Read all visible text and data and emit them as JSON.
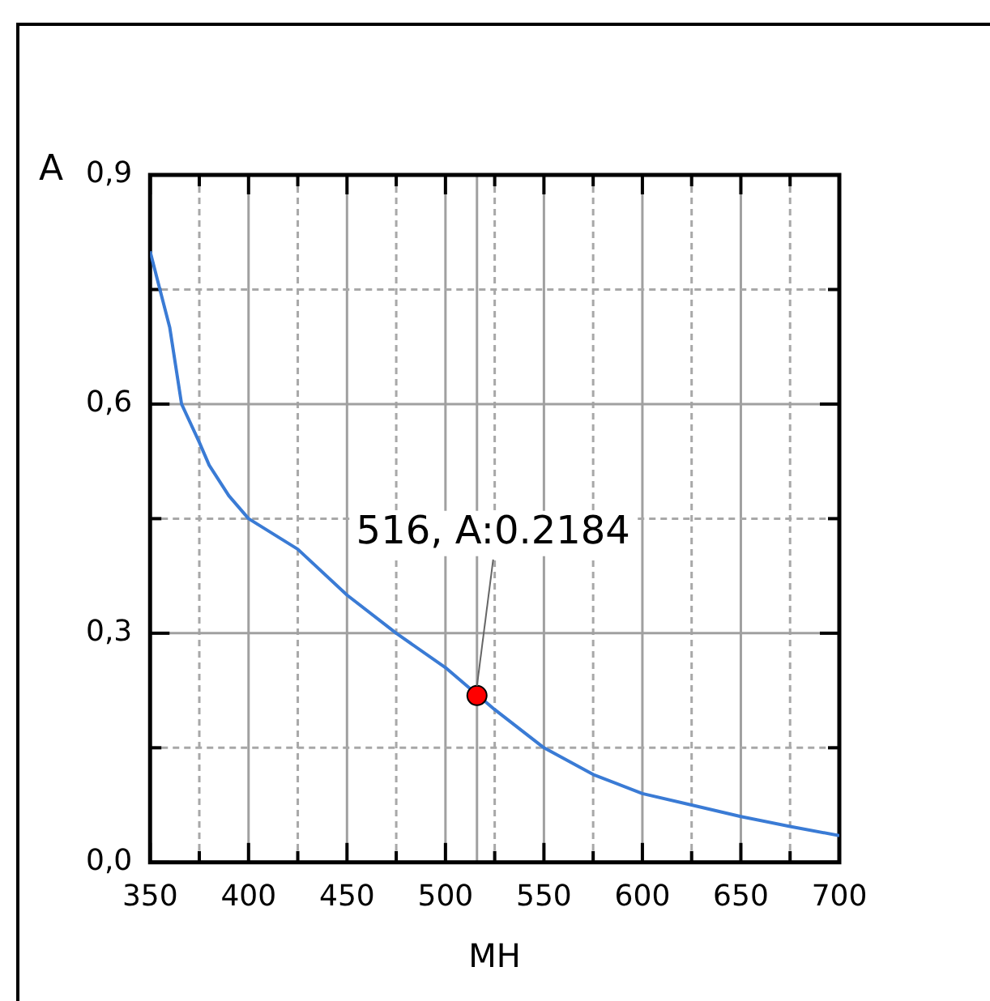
{
  "chart_data": {
    "type": "line",
    "xlabel": "MH",
    "ylabel": "A",
    "xlim": [
      350,
      700
    ],
    "ylim": [
      0,
      0.9
    ],
    "xticks": [
      350,
      {
        "value": 375,
        "label": null
      },
      400,
      {
        "value": 425,
        "label": null
      },
      450,
      {
        "value": 475,
        "label": null
      },
      500,
      {
        "value": 525,
        "label": null
      },
      550,
      {
        "value": 575,
        "label": null
      },
      600,
      {
        "value": 625,
        "label": null
      },
      650,
      {
        "value": 675,
        "label": null
      },
      700
    ],
    "yticks": [
      {
        "value": 0,
        "label": "0,0"
      },
      {
        "value": 0.15,
        "label": null
      },
      {
        "value": 0.3,
        "label": "0,3"
      },
      {
        "value": 0.45,
        "label": null
      },
      {
        "value": 0.6,
        "label": "0,6"
      },
      {
        "value": 0.75,
        "label": null
      },
      {
        "value": 0.9,
        "label": "0,9"
      }
    ],
    "grid": true,
    "legend": false,
    "series": [
      {
        "color": "#3a7bd5",
        "marker": "none",
        "x": [
          350,
          355,
          360,
          366,
          375,
          380,
          390,
          400,
          425,
          450,
          475,
          500,
          525,
          550,
          575,
          600,
          625,
          650,
          675,
          700
        ],
        "values": [
          0.8,
          0.75,
          0.7,
          0.6,
          0.55,
          0.52,
          0.48,
          0.45,
          0.41,
          0.35,
          0.3,
          0.255,
          0.2,
          0.15,
          0.115,
          0.09,
          0.075,
          0.06,
          0.047,
          0.035
        ]
      },
      {
        "type": "scatter",
        "color": "#ff0000",
        "marker": "circle",
        "x": [
          516
        ],
        "values": [
          0.2184
        ]
      }
    ],
    "ref_lines": [
      {
        "axis": "x",
        "value": 516,
        "color": "#a0a0a0"
      }
    ],
    "annotations": [
      {
        "text": "516, A:0.2184",
        "x": 516,
        "y": 0.2184
      }
    ]
  }
}
